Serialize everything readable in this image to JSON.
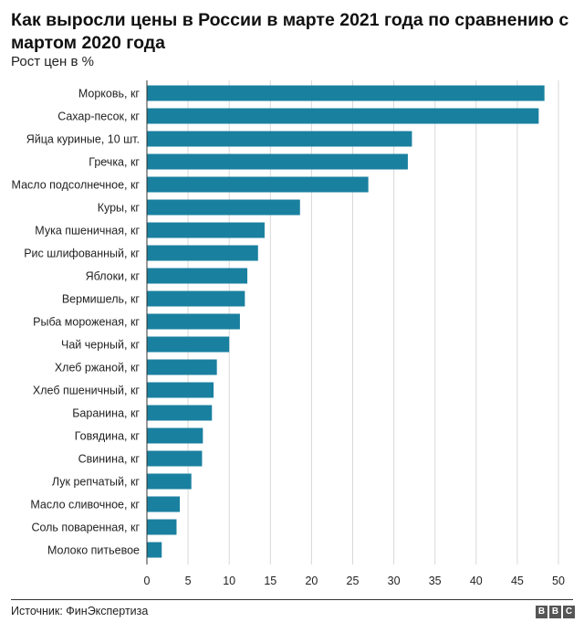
{
  "title": "Как выросли цены в России в марте 2021 года по сравнению с мартом 2020 года",
  "subtitle": "Рост цен в %",
  "source": "Источник: ФинЭкспертиза",
  "logo_letters": [
    "B",
    "B",
    "C"
  ],
  "colors": {
    "bar": "#1a809f",
    "grid": "#d8d8d8",
    "axis": "#333333"
  },
  "chart_data": {
    "type": "bar",
    "orientation": "horizontal",
    "title": "Как выросли цены в России в марте 2021 года по сравнению с мартом 2020 года",
    "xlabel": "Рост цен в %",
    "ylabel": "",
    "xlim": [
      0,
      50
    ],
    "xticks": [
      0,
      5,
      10,
      15,
      20,
      25,
      30,
      35,
      40,
      45,
      50
    ],
    "grid": true,
    "categories": [
      "Морковь, кг",
      "Сахар-песок, кг",
      "Яйца куриные, 10 шт.",
      "Гречка, кг",
      "Масло подсолнечное, кг",
      "Куры, кг",
      "Мука пшеничная, кг",
      "Рис шлифованный, кг",
      "Яблоки, кг",
      "Вермишель, кг",
      "Рыба мороженая, кг",
      "Чай черный, кг",
      "Хлеб ржаной, кг",
      "Хлеб пшеничный, кг",
      "Баранина, кг",
      "Говядина, кг",
      "Свинина, кг",
      "Лук репчатый, кг",
      "Масло сливочное, кг",
      "Соль поваренная, кг",
      "Молоко питьевое"
    ],
    "values": [
      48.3,
      47.6,
      32.2,
      31.7,
      26.9,
      18.6,
      14.3,
      13.5,
      12.2,
      11.9,
      11.3,
      10.0,
      8.5,
      8.1,
      7.9,
      6.8,
      6.7,
      5.4,
      4.0,
      3.6,
      1.8
    ]
  }
}
